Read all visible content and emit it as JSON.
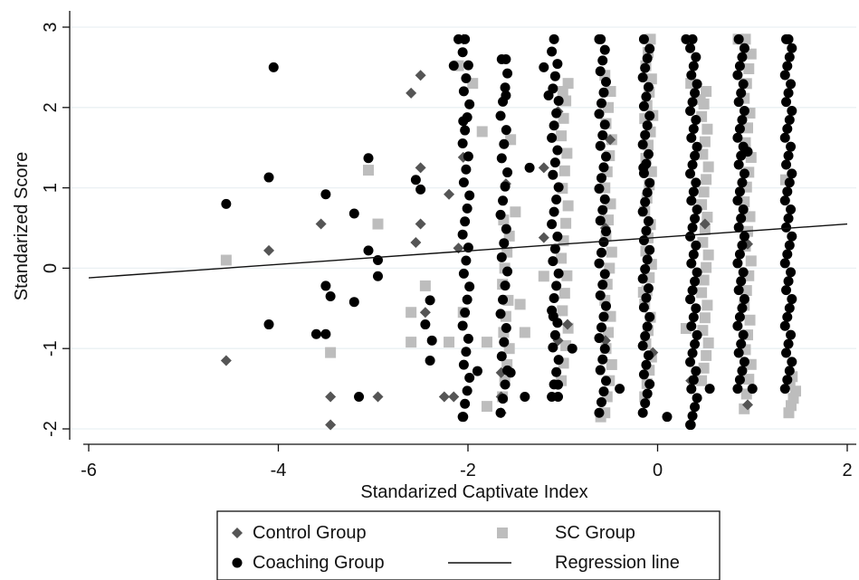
{
  "chart_data": {
    "type": "scatter",
    "title": "",
    "xlabel": "Standarized Captivate Index",
    "ylabel": "Standarized Score",
    "xlim": [
      -6.1,
      2.0
    ],
    "ylim": [
      -2.15,
      3.15
    ],
    "x_ticks": [
      -6,
      -4,
      -2,
      0,
      2
    ],
    "y_ticks": [
      -2,
      -1,
      0,
      1,
      2,
      3
    ],
    "grid": true,
    "legend_position": "bottom-center",
    "colors": {
      "control": "#555555",
      "coaching": "#000000",
      "sc": "#bdbdbd",
      "regression": "#111111",
      "grid": "#eaf0f3"
    },
    "series": [
      {
        "name": "Control Group",
        "marker": "diamond",
        "points": [
          [
            -4.55,
            -1.15
          ],
          [
            -4.1,
            0.22
          ],
          [
            -3.55,
            0.55
          ],
          [
            -3.45,
            -1.6
          ],
          [
            -3.45,
            -1.95
          ],
          [
            -2.95,
            -1.6
          ],
          [
            -2.6,
            2.18
          ],
          [
            -2.5,
            2.4
          ],
          [
            -2.55,
            0.32
          ],
          [
            -2.5,
            1.25
          ],
          [
            -2.5,
            0.55
          ],
          [
            -2.45,
            -0.55
          ],
          [
            -2.25,
            -1.6
          ],
          [
            -2.2,
            0.92
          ],
          [
            -2.15,
            -1.6
          ],
          [
            -2.05,
            2.85
          ],
          [
            -2.05,
            1.38
          ],
          [
            -2.1,
            0.25
          ],
          [
            -1.6,
            1.05
          ],
          [
            -1.65,
            -1.3
          ],
          [
            -1.65,
            -1.6
          ],
          [
            -1.65,
            -1.8
          ],
          [
            -1.2,
            1.25
          ],
          [
            -1.2,
            0.38
          ],
          [
            -1.05,
            -0.9
          ],
          [
            -0.95,
            -0.7
          ],
          [
            -0.55,
            0.5
          ],
          [
            -0.55,
            -0.9
          ],
          [
            -0.05,
            -1.05
          ],
          [
            0.35,
            -1.4
          ],
          [
            0.5,
            0.55
          ],
          [
            0.95,
            -1.7
          ],
          [
            0.95,
            0.3
          ],
          [
            -1.05,
            1.95
          ],
          [
            -0.5,
            1.6
          ]
        ]
      },
      {
        "name": "Coaching Group",
        "marker": "circle",
        "points": [
          [
            -4.55,
            0.8
          ],
          [
            -4.05,
            2.5
          ],
          [
            -4.1,
            1.13
          ],
          [
            -4.1,
            -0.7
          ],
          [
            -3.5,
            0.92
          ],
          [
            -3.5,
            -0.22
          ],
          [
            -3.45,
            -0.35
          ],
          [
            -3.6,
            -0.82
          ],
          [
            -3.5,
            -0.82
          ],
          [
            -3.2,
            0.68
          ],
          [
            -3.15,
            -1.6
          ],
          [
            -3.2,
            -0.42
          ],
          [
            -3.05,
            1.37
          ],
          [
            -3.05,
            0.22
          ],
          [
            -2.95,
            0.1
          ],
          [
            -2.95,
            -0.1
          ],
          [
            -2.55,
            1.1
          ],
          [
            -2.5,
            0.98
          ],
          [
            -2.45,
            -0.7
          ],
          [
            -2.4,
            -0.4
          ],
          [
            -2.38,
            -0.9
          ],
          [
            -2.4,
            -1.15
          ],
          [
            -2.15,
            2.52
          ],
          [
            -2.1,
            2.85
          ],
          [
            -2.05,
            1.83
          ],
          [
            -2.05,
            -1.85
          ],
          [
            -1.9,
            -1.28
          ],
          [
            -1.6,
            2.6
          ],
          [
            -1.6,
            2.15
          ],
          [
            -1.55,
            -1.3
          ],
          [
            -1.4,
            -1.6
          ],
          [
            -1.35,
            1.25
          ],
          [
            -1.2,
            2.5
          ],
          [
            -1.15,
            2.15
          ],
          [
            -1.05,
            -1.6
          ],
          [
            -1.1,
            -0.6
          ],
          [
            -0.15,
            1.25
          ],
          [
            0.1,
            -1.85
          ],
          [
            0.35,
            -1.95
          ],
          [
            -0.6,
            2.85
          ],
          [
            0.3,
            2.85
          ],
          [
            1.38,
            2.85
          ],
          [
            -1.05,
            -1.45
          ],
          [
            -0.9,
            -1.0
          ],
          [
            -0.4,
            -1.5
          ],
          [
            0.55,
            -1.5
          ],
          [
            1.0,
            -1.5
          ],
          [
            0.95,
            1.45
          ]
        ],
        "columns": [
          {
            "x": -2.02,
            "y_min": -1.85,
            "y_max": 2.85,
            "n": 30
          },
          {
            "x": -1.62,
            "y_min": -1.8,
            "y_max": 2.6,
            "n": 26
          },
          {
            "x": -1.08,
            "y_min": -1.6,
            "y_max": 2.85,
            "n": 30
          },
          {
            "x": -0.58,
            "y_min": -1.8,
            "y_max": 2.85,
            "n": 36
          },
          {
            "x": -0.12,
            "y_min": -1.8,
            "y_max": 2.85,
            "n": 40
          },
          {
            "x": 0.38,
            "y_min": -1.95,
            "y_max": 2.85,
            "n": 44
          },
          {
            "x": 0.88,
            "y_min": -1.5,
            "y_max": 2.85,
            "n": 40
          },
          {
            "x": 1.38,
            "y_min": -1.5,
            "y_max": 2.85,
            "n": 40
          }
        ]
      },
      {
        "name": "SC Group",
        "marker": "square",
        "points": [
          [
            -4.55,
            0.1
          ],
          [
            -3.45,
            -1.05
          ],
          [
            -3.05,
            1.22
          ],
          [
            -2.95,
            0.55
          ],
          [
            -2.6,
            -0.55
          ],
          [
            -2.6,
            -0.92
          ],
          [
            -2.45,
            -0.22
          ],
          [
            -2.1,
            2.52
          ],
          [
            -1.95,
            2.3
          ],
          [
            -1.85,
            1.7
          ],
          [
            -1.8,
            -0.92
          ],
          [
            -1.8,
            -1.72
          ],
          [
            -2.2,
            -0.92
          ],
          [
            -2.05,
            -0.55
          ],
          [
            -1.55,
            1.6
          ],
          [
            -1.5,
            0.7
          ],
          [
            -1.45,
            -0.45
          ],
          [
            -1.4,
            -0.8
          ],
          [
            -1.2,
            -0.1
          ],
          [
            -1.0,
            2.2
          ],
          [
            -0.6,
            -1.85
          ],
          [
            -0.05,
            1.9
          ],
          [
            -0.15,
            -0.3
          ],
          [
            0.3,
            -0.75
          ],
          [
            0.35,
            2.3
          ],
          [
            0.45,
            2.1
          ],
          [
            0.85,
            2.85
          ],
          [
            1.35,
            1.1
          ]
        ],
        "columns": [
          {
            "x": -1.6,
            "y_min": -1.6,
            "y_max": 0.6,
            "n": 12
          },
          {
            "x": -0.98,
            "y_min": -1.4,
            "y_max": 2.3,
            "n": 18
          },
          {
            "x": -0.52,
            "y_min": -1.8,
            "y_max": 2.4,
            "n": 22
          },
          {
            "x": -0.1,
            "y_min": -1.6,
            "y_max": 2.85,
            "n": 28
          },
          {
            "x": 0.5,
            "y_min": -1.4,
            "y_max": 2.2,
            "n": 24
          },
          {
            "x": 0.95,
            "y_min": -1.75,
            "y_max": 2.85,
            "n": 26
          },
          {
            "x": 1.42,
            "y_min": -1.8,
            "y_max": -1.35,
            "n": 6
          }
        ]
      }
    ],
    "regression_line": {
      "name": "Regression line",
      "x": [
        -6.0,
        2.0
      ],
      "y": [
        -0.12,
        0.55
      ]
    },
    "legend": [
      {
        "label": "Control Group",
        "marker": "diamond"
      },
      {
        "label": "SC Group",
        "marker": "square"
      },
      {
        "label": "Coaching Group",
        "marker": "circle"
      },
      {
        "label": "Regression line",
        "marker": "line"
      }
    ]
  }
}
